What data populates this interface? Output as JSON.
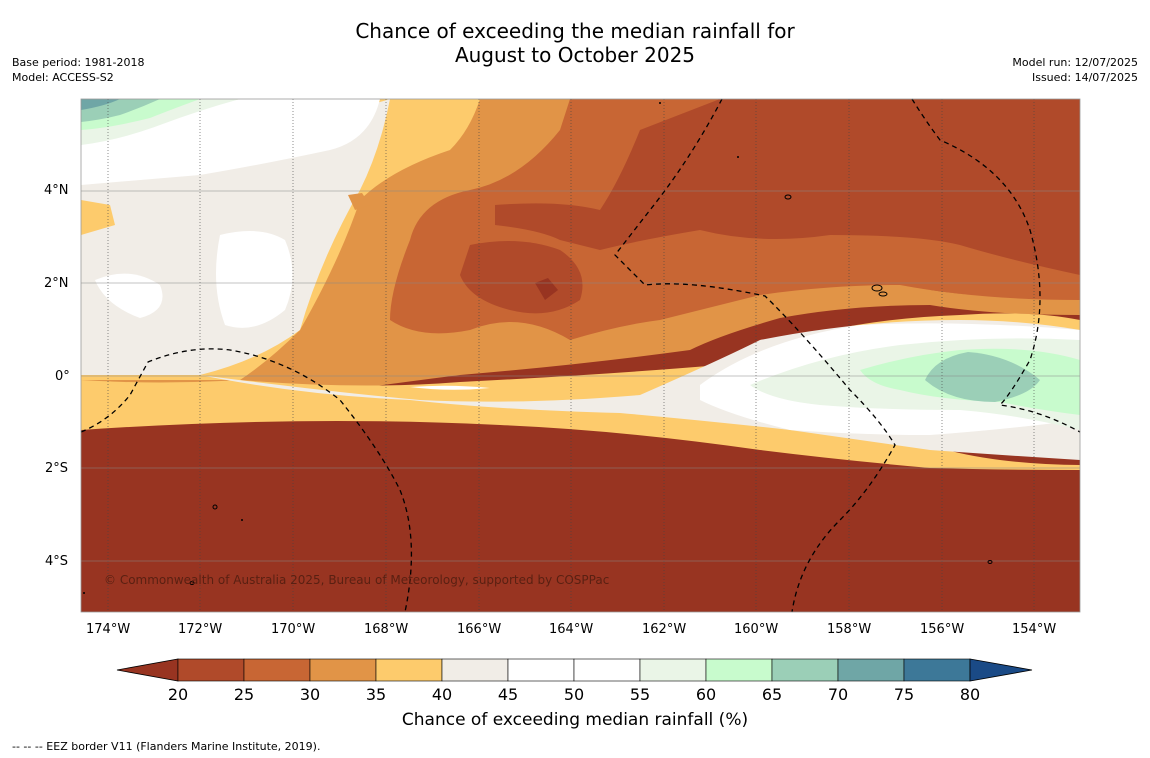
{
  "title_line1": "Chance of exceeding the median rainfall for",
  "title_line2": "August to October 2025",
  "base_period": "Base period: 1981-2018",
  "model": "Model: ACCESS-S2",
  "model_run": "Model run: 12/07/2025",
  "issued": "Issued: 14/07/2025",
  "copyright": "© Commonwealth of Australia 2025, Bureau of Meteorology, supported by COSPPac",
  "lat_labels": [
    "4°N",
    "2°N",
    "0°",
    "2°S",
    "4°S"
  ],
  "lon_labels": [
    "174°W",
    "172°W",
    "170°W",
    "168°W",
    "166°W",
    "164°W",
    "162°W",
    "160°W",
    "158°W",
    "156°W",
    "154°W"
  ],
  "colorbar": {
    "ticks": [
      "20",
      "25",
      "30",
      "35",
      "40",
      "45",
      "50",
      "55",
      "60",
      "65",
      "70",
      "75",
      "80"
    ],
    "colors": [
      "#983421",
      "#b04a2a",
      "#c86634",
      "#e19447",
      "#fdcb6c",
      "#f1ede7",
      "#ffffff",
      "#ffffff",
      "#eaf5e7",
      "#c8fbcd",
      "#9bcfb7",
      "#6fa6a6",
      "#3d7898",
      "#1a4a86"
    ],
    "label": "Chance of exceeding median rainfall (%)"
  },
  "footnote": "--  --  -- EEZ border V11 (Flanders Marine Institute, 2019)."
}
